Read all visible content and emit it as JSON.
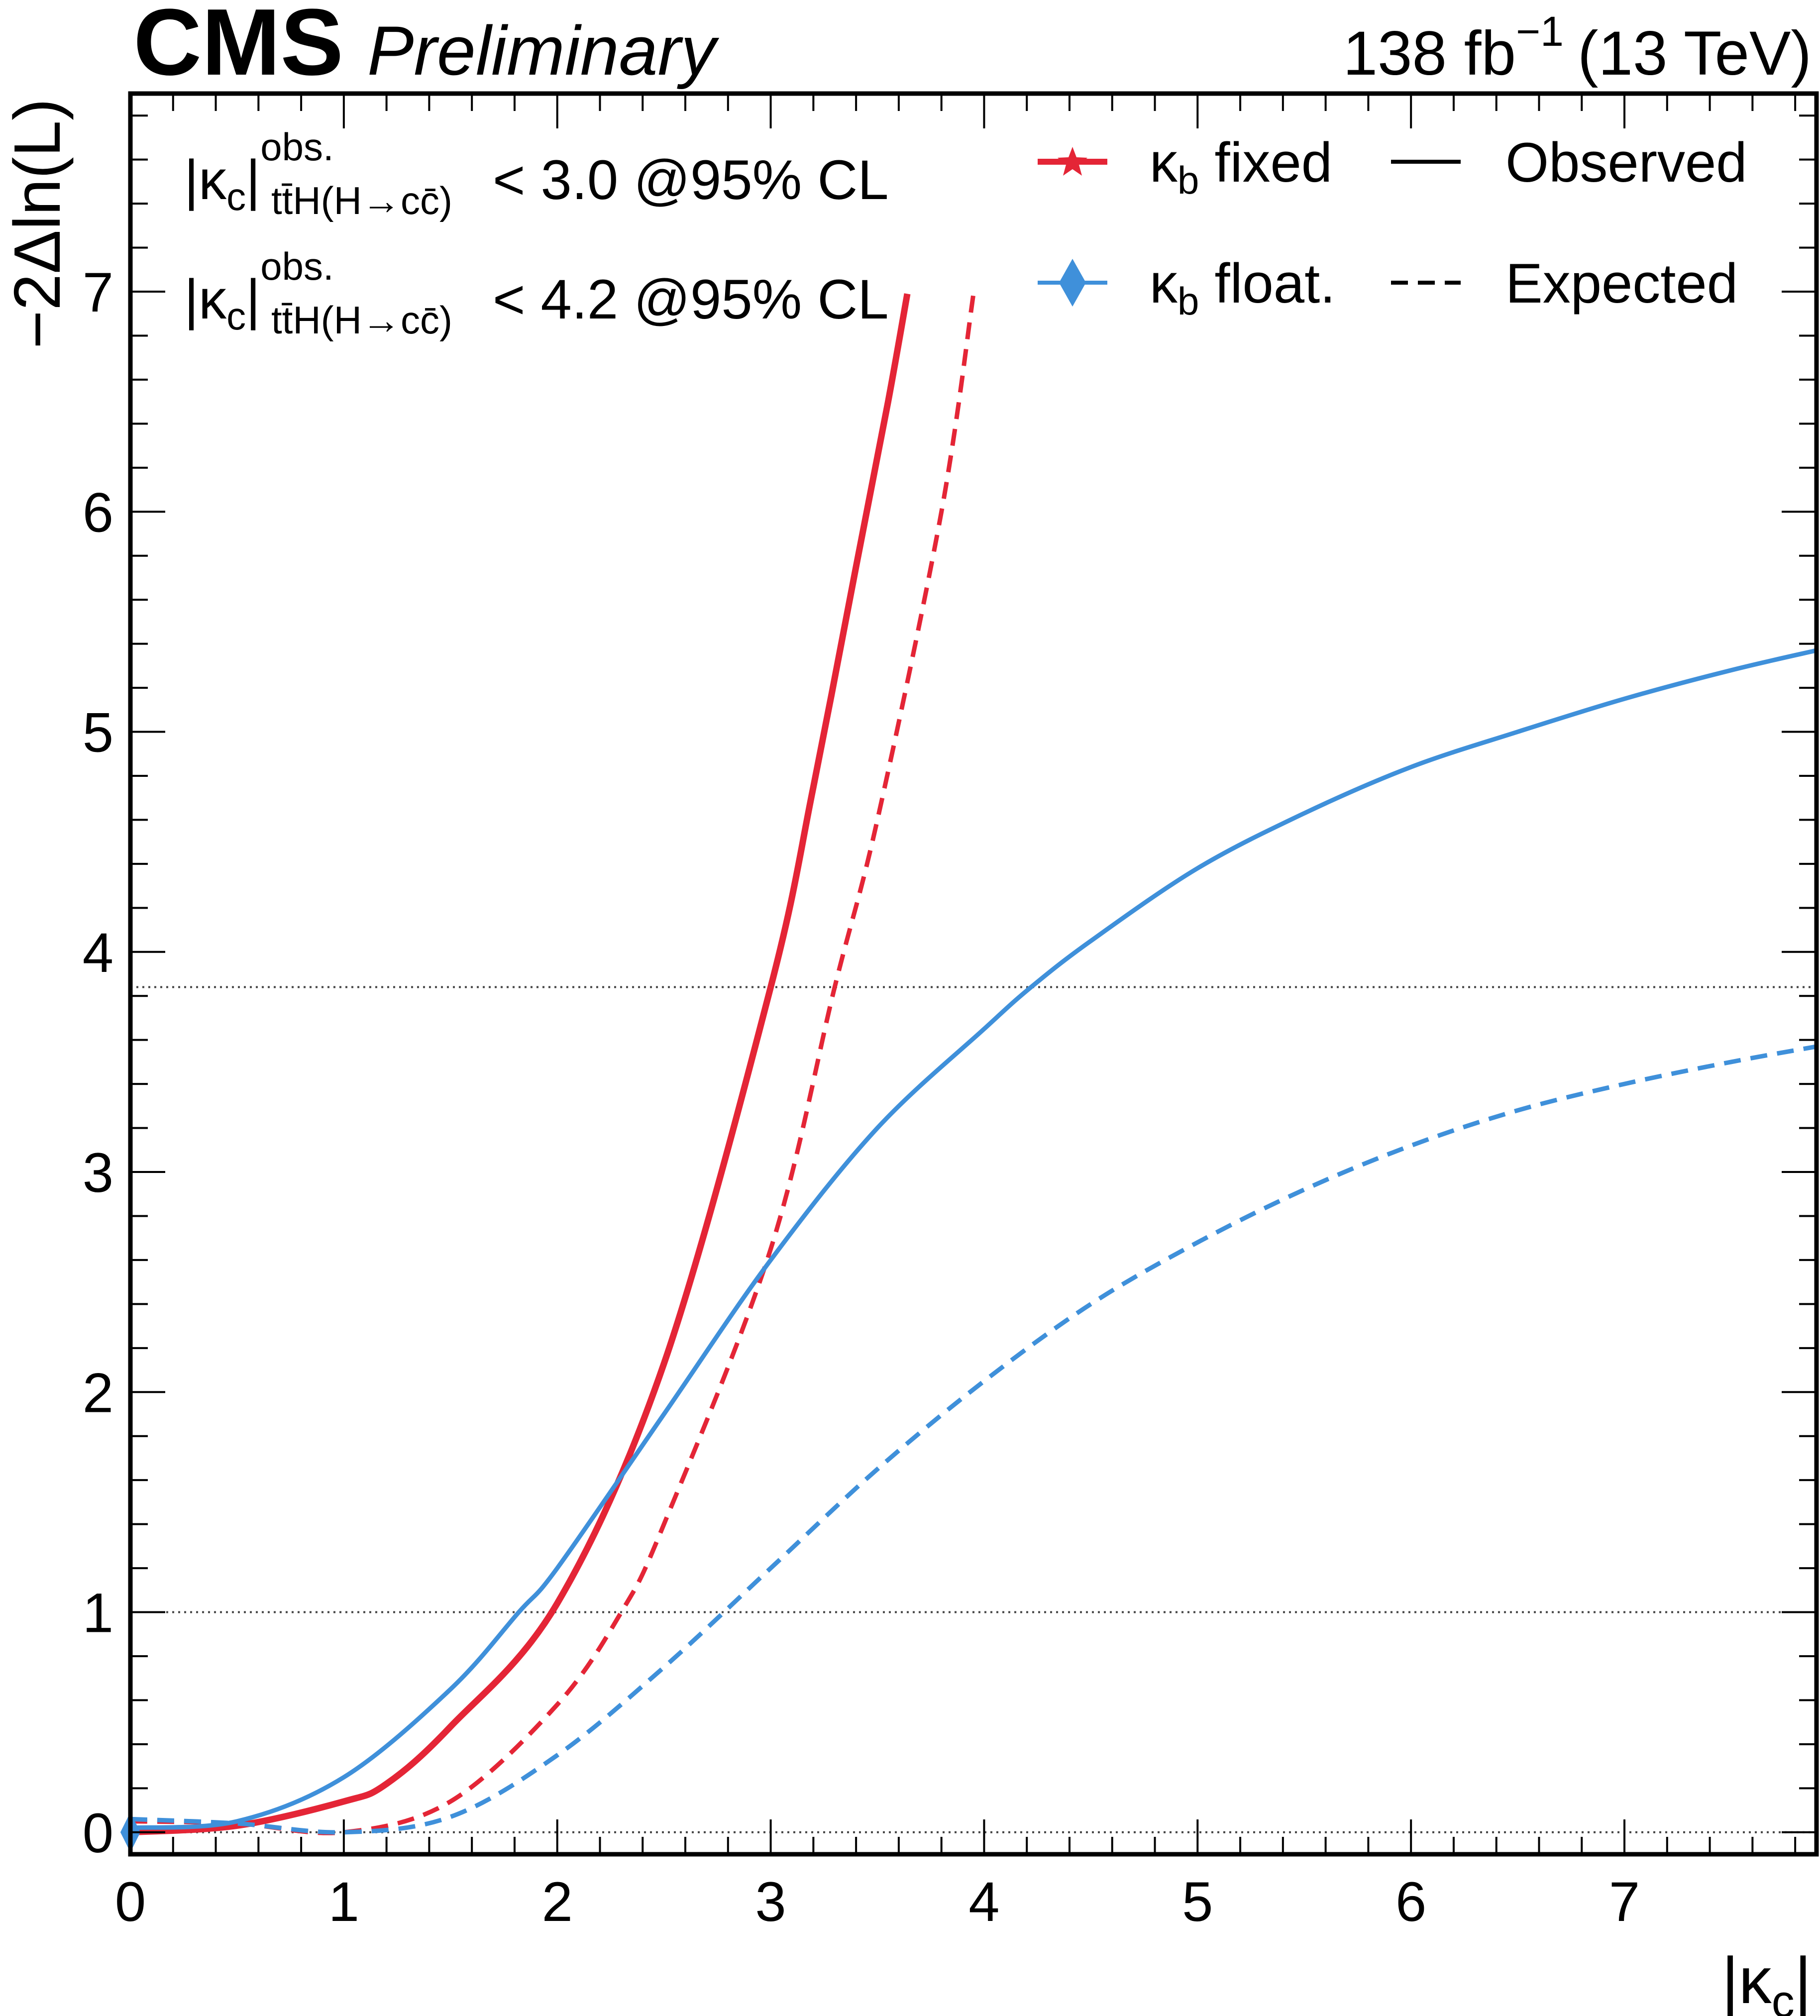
{
  "header": {
    "experiment": "CMS",
    "status": "Preliminary",
    "lumi_value": "138 fb",
    "lumi_exp": "−1",
    "energy": "(13 TeV)"
  },
  "annotations": {
    "fixed": {
      "prefix": "|κ",
      "sub": "c",
      "sup": "obs.",
      "process": "tt̄H(H→cc̄)",
      "limit": "< 3.0 @95% CL",
      "color": "#e42536"
    },
    "float": {
      "prefix": "|κ",
      "sub": "c",
      "sup": "obs.",
      "process": "tt̄H(H→cc̄)",
      "limit": "< 4.2 @95% CL",
      "color": "#3f90da"
    }
  },
  "legend": {
    "items": [
      {
        "label_main": "κ",
        "label_sub": "b",
        "label_rest": " fixed",
        "color": "#e42536",
        "marker": "star"
      },
      {
        "label_main": "κ",
        "label_sub": "b",
        "label_rest": " float.",
        "color": "#3f90da",
        "marker": "diamond"
      }
    ],
    "styles": [
      {
        "label": "Observed",
        "dash": "solid"
      },
      {
        "label": "Expected",
        "dash": "dashed"
      }
    ]
  },
  "chart_data": {
    "type": "line",
    "xlabel_main": "|κ",
    "xlabel_sub": "c",
    "xlabel_close": "|",
    "ylabel": "−2Δln(L)",
    "xlim": [
      0,
      7.9
    ],
    "ylim": [
      -0.1,
      7.9
    ],
    "xticks": [
      0,
      1,
      2,
      3,
      4,
      5,
      6,
      7
    ],
    "yticks": [
      0,
      1,
      2,
      3,
      4,
      5,
      6,
      7
    ],
    "reference_lines": [
      0,
      1,
      3.84
    ],
    "series": [
      {
        "name": "κb fixed Observed",
        "color": "#e42536",
        "dash": "solid",
        "width": "thick",
        "x": [
          0,
          0.5,
          1.0,
          1.2,
          1.5,
          2.0,
          2.5,
          3.0,
          3.2,
          3.4,
          3.55,
          3.64
        ],
        "y": [
          0.0,
          0.03,
          0.14,
          0.22,
          0.48,
          1.04,
          2.13,
          3.84,
          4.75,
          5.75,
          6.5,
          6.99
        ]
      },
      {
        "name": "κb fixed Expected",
        "color": "#e42536",
        "dash": "dashed",
        "width": "normal",
        "x": [
          0,
          0.5,
          1.0,
          1.5,
          2.0,
          2.3,
          2.5,
          3.0,
          3.3,
          3.5,
          3.8,
          3.95
        ],
        "y": [
          0.05,
          0.04,
          0.0,
          0.14,
          0.58,
          1.0,
          1.4,
          2.65,
          3.84,
          4.6,
          6.0,
          6.99
        ]
      },
      {
        "name": "κb float. Observed",
        "color": "#3f90da",
        "dash": "solid",
        "width": "normal",
        "x": [
          0,
          0.5,
          1.0,
          1.5,
          1.82,
          2.0,
          2.5,
          3.0,
          3.5,
          4.0,
          4.22,
          4.5,
          5.0,
          5.5,
          6.0,
          6.5,
          7.0,
          7.5,
          7.9
        ],
        "y": [
          0.02,
          0.05,
          0.25,
          0.65,
          1.0,
          1.2,
          1.9,
          2.6,
          3.2,
          3.65,
          3.84,
          4.05,
          4.38,
          4.63,
          4.84,
          5.0,
          5.15,
          5.28,
          5.37
        ],
        "marker": {
          "x": 0,
          "y": 0.0
        }
      },
      {
        "name": "κb float. Expected",
        "color": "#3f90da",
        "dash": "dashed",
        "width": "normal",
        "x": [
          0,
          0.5,
          1.0,
          1.5,
          2.0,
          2.5,
          3.0,
          3.5,
          4.0,
          4.5,
          5.0,
          5.5,
          6.0,
          6.5,
          7.0,
          7.5,
          7.9
        ],
        "y": [
          0.06,
          0.04,
          0.0,
          0.07,
          0.35,
          0.75,
          1.2,
          1.65,
          2.05,
          2.4,
          2.68,
          2.92,
          3.12,
          3.28,
          3.4,
          3.5,
          3.57
        ],
        "marker": {
          "x": 0,
          "y": 0.0
        }
      }
    ]
  }
}
